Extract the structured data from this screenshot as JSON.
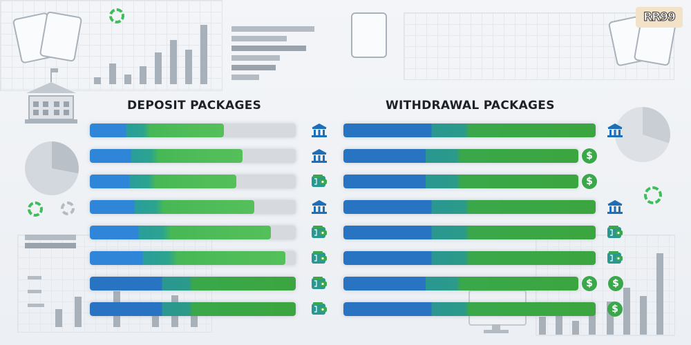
{
  "brand": {
    "logo_text": "RR99"
  },
  "deposit": {
    "title": "DEPOSIT PACKAGES",
    "rows": [
      {
        "fill": 0.65,
        "icon": "bank-icon"
      },
      {
        "fill": 0.74,
        "icon": "bank-icon"
      },
      {
        "fill": 0.71,
        "icon": "wallet-icon"
      },
      {
        "fill": 0.8,
        "icon": "bank-icon"
      },
      {
        "fill": 0.88,
        "icon": "wallet-icon"
      },
      {
        "fill": 0.95,
        "icon": "wallet-icon"
      },
      {
        "fill": 1.0,
        "icon": "wallet-icon"
      },
      {
        "fill": 1.0,
        "icon": "wallet-icon"
      }
    ]
  },
  "withdrawal": {
    "title": "WITHDRAWAL PACKAGES",
    "rows": [
      {
        "fill": 1.0,
        "icons": [
          "bank-icon"
        ]
      },
      {
        "fill": 0.93,
        "icons": [
          "dollar-coin-icon"
        ]
      },
      {
        "fill": 0.93,
        "icons": [
          "dollar-coin-icon"
        ]
      },
      {
        "fill": 1.0,
        "icons": [
          "bank-icon"
        ]
      },
      {
        "fill": 1.0,
        "icons": [
          "wallet-icon"
        ]
      },
      {
        "fill": 1.0,
        "icons": [
          "wallet-icon"
        ]
      },
      {
        "fill": 0.93,
        "icons": [
          "dollar-coin-icon",
          "dollar-coin-icon"
        ]
      },
      {
        "fill": 1.0,
        "icons": [
          "dollar-coin-icon"
        ]
      }
    ]
  },
  "coin_symbol": "$",
  "colors": {
    "blue": "#2f86d8",
    "teal": "#2a9d9b",
    "green": "#55c05a",
    "dark_green": "#3aa84a",
    "icon_blue": "#1f6fb8",
    "track": "#d6dade",
    "title": "#1e2228"
  }
}
